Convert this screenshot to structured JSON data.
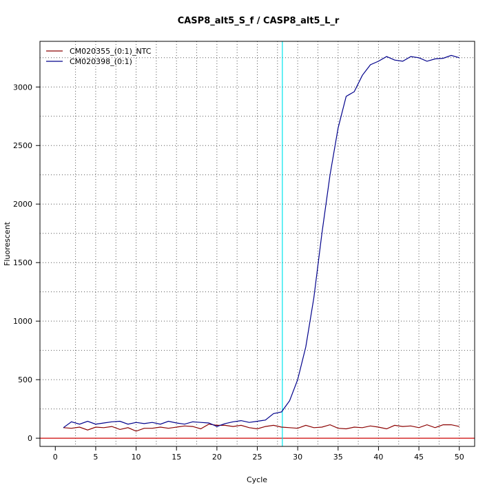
{
  "chart_data": {
    "type": "line",
    "title": "CASP8_alt5_S_f / CASP8_alt5_L_r",
    "xlabel": "Cycle",
    "ylabel": "Fluorescent",
    "xlim": [
      -1.9,
      51.9
    ],
    "ylim": [
      -70,
      3390
    ],
    "x_ticks": [
      0,
      5,
      10,
      15,
      20,
      25,
      30,
      35,
      40,
      45,
      50
    ],
    "y_ticks": [
      0,
      500,
      1000,
      1500,
      2000,
      2500,
      3000
    ],
    "grid": true,
    "legend_position": "top-left",
    "threshold": {
      "x": 28.1,
      "color": "#00e5ee"
    },
    "baseline": {
      "y": 0,
      "color": "#cc0000"
    },
    "series": [
      {
        "name": "CM020355_(0:1)_NTC",
        "color": "#8b0000",
        "x": [
          1,
          2,
          3,
          4,
          5,
          6,
          7,
          8,
          9,
          10,
          11,
          12,
          13,
          14,
          15,
          16,
          17,
          18,
          19,
          20,
          21,
          22,
          23,
          24,
          25,
          26,
          27,
          28,
          29,
          30,
          31,
          32,
          33,
          34,
          35,
          36,
          37,
          38,
          39,
          40,
          41,
          42,
          43,
          44,
          45,
          46,
          47,
          48,
          49,
          50
        ],
        "y": [
          90,
          85,
          95,
          70,
          95,
          90,
          100,
          75,
          90,
          60,
          85,
          85,
          95,
          85,
          95,
          105,
          100,
          80,
          120,
          110,
          110,
          100,
          110,
          90,
          80,
          100,
          110,
          95,
          90,
          85,
          110,
          90,
          95,
          115,
          85,
          80,
          95,
          90,
          105,
          95,
          80,
          110,
          100,
          105,
          90,
          115,
          90,
          115,
          115,
          100
        ]
      },
      {
        "name": "CM020398_(0:1)",
        "color": "#00008b",
        "x": [
          1,
          2,
          3,
          4,
          5,
          6,
          7,
          8,
          9,
          10,
          11,
          12,
          13,
          14,
          15,
          16,
          17,
          18,
          19,
          20,
          21,
          22,
          23,
          24,
          25,
          26,
          27,
          28,
          29,
          30,
          31,
          32,
          33,
          34,
          35,
          36,
          37,
          38,
          39,
          40,
          41,
          42,
          43,
          44,
          45,
          46,
          47,
          48,
          49,
          50
        ],
        "y": [
          90,
          140,
          120,
          145,
          120,
          130,
          140,
          145,
          120,
          135,
          125,
          135,
          120,
          145,
          130,
          120,
          140,
          135,
          130,
          100,
          125,
          140,
          150,
          135,
          145,
          155,
          210,
          225,
          320,
          500,
          780,
          1200,
          1750,
          2250,
          2650,
          2920,
          2960,
          3100,
          3190,
          3220,
          3260,
          3230,
          3220,
          3260,
          3250,
          3220,
          3240,
          3245,
          3270,
          3250
        ]
      }
    ]
  }
}
